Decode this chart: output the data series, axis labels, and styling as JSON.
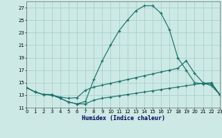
{
  "xlabel": "Humidex (Indice chaleur)",
  "xlim": [
    0,
    23
  ],
  "ylim": [
    11,
    28
  ],
  "yticks": [
    11,
    13,
    15,
    17,
    19,
    21,
    23,
    25,
    27
  ],
  "xticks": [
    0,
    1,
    2,
    3,
    4,
    5,
    6,
    7,
    8,
    9,
    10,
    11,
    12,
    13,
    14,
    15,
    16,
    17,
    18,
    19,
    20,
    21,
    22,
    23
  ],
  "bg_color": "#cce9e5",
  "grid_color": "#aacfcb",
  "line_color": "#1a7068",
  "line1_x": [
    0,
    1,
    2,
    3,
    4,
    5,
    6,
    7,
    8,
    9,
    10,
    11,
    12,
    13,
    14,
    15,
    16,
    17,
    18,
    19,
    20,
    21,
    22,
    23
  ],
  "line1_y": [
    14.2,
    13.5,
    13.1,
    13.1,
    12.5,
    11.9,
    11.6,
    12.0,
    15.5,
    18.5,
    21.0,
    23.3,
    25.0,
    26.5,
    27.3,
    27.3,
    26.1,
    23.5,
    19.0,
    17.0,
    15.0,
    14.8,
    14.8,
    13.1
  ],
  "line2_x": [
    0,
    1,
    2,
    3,
    4,
    5,
    6,
    7,
    8,
    9,
    10,
    11,
    12,
    13,
    14,
    15,
    16,
    17,
    18,
    19,
    20,
    21,
    22,
    23
  ],
  "line2_y": [
    14.2,
    13.5,
    13.1,
    13.0,
    12.7,
    12.5,
    12.6,
    13.8,
    14.3,
    14.6,
    14.9,
    15.2,
    15.5,
    15.8,
    16.1,
    16.4,
    16.7,
    17.0,
    17.3,
    18.5,
    16.5,
    15.0,
    14.5,
    13.1
  ],
  "line3_x": [
    0,
    1,
    2,
    3,
    4,
    5,
    6,
    7,
    8,
    9,
    10,
    11,
    12,
    13,
    14,
    15,
    16,
    17,
    18,
    19,
    20,
    21,
    22,
    23
  ],
  "line3_y": [
    14.2,
    13.5,
    13.1,
    13.0,
    12.5,
    11.9,
    11.6,
    11.6,
    12.2,
    12.5,
    12.7,
    12.9,
    13.1,
    13.3,
    13.5,
    13.7,
    13.9,
    14.1,
    14.3,
    14.5,
    14.7,
    14.9,
    15.0,
    13.1
  ]
}
